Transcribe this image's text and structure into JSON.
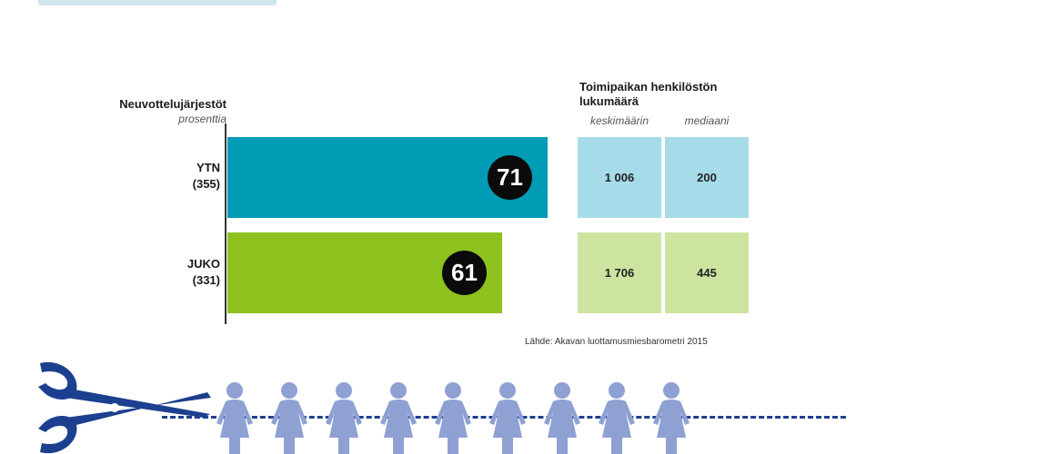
{
  "chart_data": {
    "type": "bar",
    "orientation": "horizontal",
    "header": "Neuvottelujärjestöt",
    "subheader": "prosenttia",
    "categories": [
      {
        "name": "YTN",
        "count": "(355)",
        "value": 71,
        "label": "71",
        "color": "#009bb4"
      },
      {
        "name": "JUKO",
        "count": "(331)",
        "value": 61,
        "label": "61",
        "color": "#8dc21f"
      }
    ],
    "xlim": [
      0,
      100
    ],
    "grid": false
  },
  "table": {
    "title": "Toimipaikan henkilöstön lukumäärä",
    "columns": [
      "keskimäärin",
      "mediaani"
    ],
    "rows": [
      {
        "values": [
          "1 006",
          "200"
        ],
        "color": "#a6dce9"
      },
      {
        "values": [
          "1 706",
          "445"
        ],
        "color": "#cde4a0"
      }
    ]
  },
  "source": "Lähde: Akavan luottamusmiesbarometri 2015",
  "illustration": {
    "icon": "scissors-icon",
    "figure_count": 9,
    "figure_color": "#8fa0d3",
    "scissors_color": "#1c3f8f"
  }
}
